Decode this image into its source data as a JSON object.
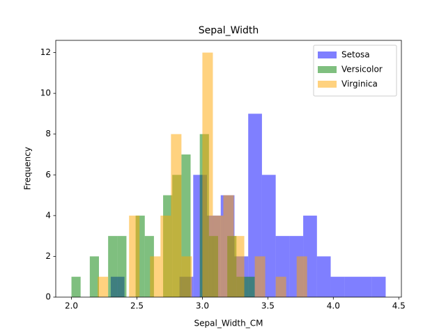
{
  "chart_data": {
    "type": "histogram",
    "title": "Sepal_Width",
    "xlabel": "Sepal_Width_CM",
    "ylabel": "Frequency",
    "xlim": [
      1.88,
      4.52
    ],
    "ylim": [
      0,
      12.6
    ],
    "xticks": [
      {
        "value": 2.0,
        "label": "2.0"
      },
      {
        "value": 2.5,
        "label": "2.5"
      },
      {
        "value": 3.0,
        "label": "3.0"
      },
      {
        "value": 3.5,
        "label": "3.5"
      },
      {
        "value": 4.0,
        "label": "4.0"
      },
      {
        "value": 4.5,
        "label": "4.5"
      }
    ],
    "yticks": [
      0,
      2,
      4,
      6,
      8,
      10,
      12
    ],
    "legend": "upper right",
    "alpha": 0.5,
    "series": [
      {
        "name": "Setosa",
        "color": "#0000ff",
        "bins": [
          2.3,
          2.405,
          2.51,
          2.615,
          2.72,
          2.825,
          2.93,
          3.035,
          3.14,
          3.245,
          3.35,
          3.455,
          3.56,
          3.665,
          3.77,
          3.875,
          3.98,
          4.085,
          4.19,
          4.295,
          4.4
        ],
        "values": [
          1,
          0,
          0,
          0,
          0,
          1,
          6,
          4,
          5,
          2,
          9,
          6,
          3,
          3,
          4,
          2,
          1,
          1,
          1,
          1
        ]
      },
      {
        "name": "Versicolor",
        "color": "#008000",
        "bins": [
          2.0,
          2.07,
          2.14,
          2.21,
          2.28,
          2.35,
          2.42,
          2.49,
          2.56,
          2.63,
          2.7,
          2.77,
          2.84,
          2.91,
          2.98,
          3.05,
          3.12,
          3.19,
          3.26,
          3.33,
          3.4
        ],
        "values": [
          1,
          0,
          2,
          0,
          3,
          3,
          0,
          4,
          3,
          0,
          5,
          6,
          7,
          0,
          8,
          3,
          0,
          3,
          1,
          1
        ]
      },
      {
        "name": "Virginica",
        "color": "#ffa500",
        "bins": [
          2.2,
          2.28,
          2.36,
          2.44,
          2.52,
          2.6,
          2.68,
          2.76,
          2.84,
          2.92,
          3.0,
          3.08,
          3.16,
          3.24,
          3.32,
          3.4,
          3.48,
          3.56,
          3.64,
          3.72,
          3.8
        ],
        "values": [
          1,
          0,
          0,
          4,
          0,
          2,
          4,
          8,
          2,
          0,
          12,
          4,
          5,
          3,
          0,
          2,
          0,
          1,
          0,
          2
        ]
      }
    ]
  }
}
